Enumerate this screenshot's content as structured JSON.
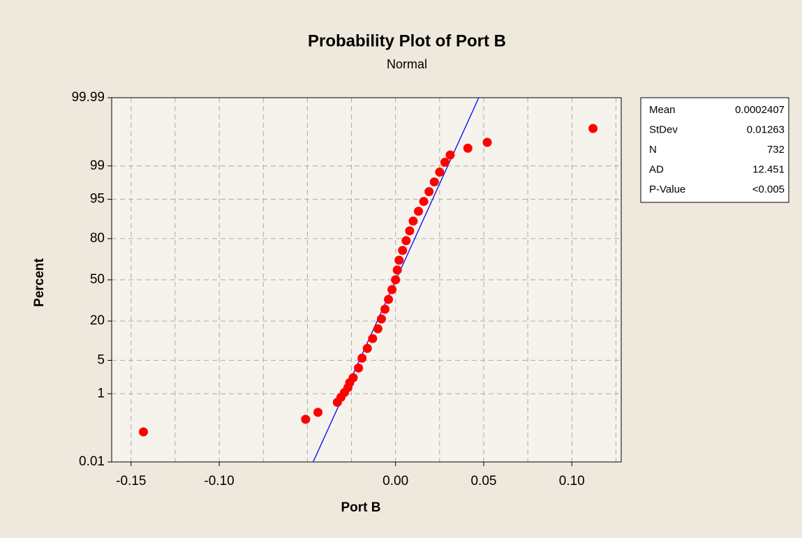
{
  "chart_data": {
    "type": "probability",
    "title": "Probability Plot of Port B",
    "subtitle": "Normal",
    "x_label": "Port B",
    "y_label": "Percent",
    "yscale": "normal-probability",
    "xlim": [
      -0.161,
      0.128
    ],
    "ylim": [
      0.01,
      99.99
    ],
    "xticks": [
      {
        "value": -0.15,
        "label": "-0.15"
      },
      {
        "value": -0.1,
        "label": "-0.10"
      },
      {
        "value": 0,
        "label": "0.00"
      },
      0.05,
      {
        "value": 0.1,
        "label": "0.10"
      }
    ],
    "x_grid": [
      -0.125,
      -0.075,
      -0.05,
      -0.025,
      0.025,
      0.075,
      0.125
    ],
    "yticks": [
      0.01,
      1,
      5,
      20,
      50,
      80,
      95,
      99,
      99.99
    ],
    "grid": true,
    "color": "#ff0000",
    "fit_color": "#0000ff",
    "x": [
      -0.143,
      -0.051,
      -0.044,
      -0.033,
      -0.031,
      -0.029,
      -0.027,
      -0.026,
      -0.024,
      -0.021,
      -0.019,
      -0.016,
      -0.013,
      -0.01,
      -0.008,
      -0.006,
      -0.004,
      -0.002,
      0,
      0.001,
      0.002,
      0.004,
      0.006,
      0.008,
      0.01,
      0.013,
      0.016,
      0.019,
      0.022,
      0.025,
      0.028,
      0.031,
      0.041,
      0.052,
      0.112
    ],
    "values": [
      0.095,
      0.22,
      0.34,
      0.62,
      0.82,
      1.07,
      1.39,
      1.79,
      2.28,
      3.59,
      5.48,
      8.08,
      11.51,
      15.87,
      21.19,
      27.43,
      34.46,
      42.07,
      50,
      57.93,
      65.54,
      72.57,
      78.81,
      84.13,
      88.49,
      91.92,
      94.52,
      96.41,
      97.72,
      98.61,
      99.18,
      99.46,
      99.64,
      99.75,
      99.9
    ],
    "stats": [
      {
        "label": "Mean",
        "value": 0.0002407
      },
      {
        "label": "StDev",
        "value": 0.01263
      },
      {
        "label": "N",
        "value": 732
      },
      {
        "label": "AD",
        "value": 12.451
      },
      {
        "label": "P-Value",
        "value": "<0.005"
      }
    ]
  }
}
